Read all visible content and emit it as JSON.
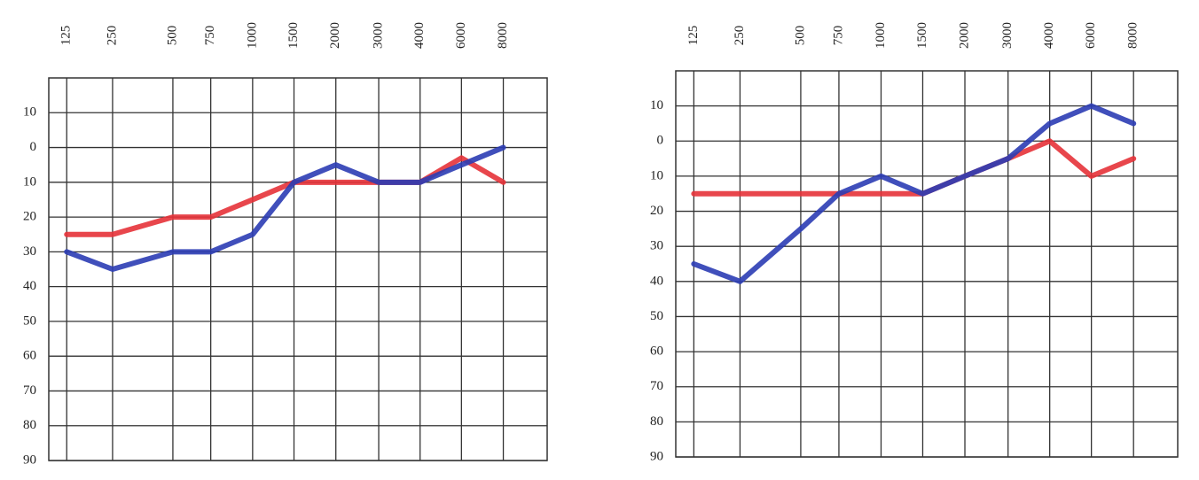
{
  "chart_data": [
    {
      "type": "line",
      "categories": [
        "125",
        "250",
        "500",
        "750",
        "1000",
        "1500",
        "2000",
        "3000",
        "4000",
        "6000",
        "8000"
      ],
      "series": [
        {
          "color": "#e53238",
          "values": [
            25,
            25,
            20,
            20,
            15,
            10,
            10,
            10,
            10,
            3,
            10
          ]
        },
        {
          "color": "#2b3cb4",
          "values": [
            30,
            35,
            30,
            30,
            25,
            10,
            5,
            10,
            10,
            5,
            0
          ]
        }
      ],
      "ylim": [
        -20,
        90
      ],
      "y_inverted": true,
      "yticks": [
        {
          "value": -10,
          "label": "10"
        },
        0,
        10,
        20,
        30,
        40,
        50,
        60,
        70,
        80,
        90
      ],
      "grid": true
    },
    {
      "type": "line",
      "categories": [
        "125",
        "250",
        "500",
        "750",
        "1000",
        "1500",
        "2000",
        "3000",
        "4000",
        "6000",
        "8000"
      ],
      "series": [
        {
          "color": "#e53238",
          "values": [
            15,
            15,
            15,
            15,
            15,
            15,
            10,
            5,
            0,
            10,
            5
          ]
        },
        {
          "color": "#2b3cb4",
          "values": [
            35,
            40,
            25,
            15,
            10,
            15,
            10,
            5,
            -5,
            -10,
            -5
          ]
        }
      ],
      "ylim": [
        -20,
        90
      ],
      "y_inverted": true,
      "yticks": [
        {
          "value": -10,
          "label": "10"
        },
        0,
        10,
        20,
        30,
        40,
        50,
        60,
        70,
        80,
        90
      ],
      "grid": true
    }
  ]
}
